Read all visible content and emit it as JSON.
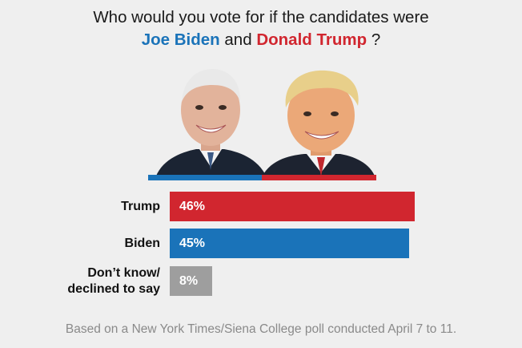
{
  "title": {
    "prefix": "Who would you vote for if the candidates were",
    "candidate_a": "Joe Biden",
    "joiner": "and",
    "candidate_b": "Donald Trump",
    "suffix": "?"
  },
  "colors": {
    "trump": "#d1262f",
    "biden": "#1a73b9",
    "undecided": "#9e9e9e"
  },
  "chart_data": {
    "type": "bar",
    "orientation": "horizontal",
    "categories": [
      "Trump",
      "Biden",
      "Don’t know/ declined to say"
    ],
    "values": [
      46,
      45,
      8
    ],
    "value_labels": [
      "46%",
      "45%",
      "8%"
    ],
    "unit": "%",
    "xlim": [
      0,
      50
    ]
  },
  "row_labels": {
    "trump": "Trump",
    "biden": "Biden",
    "undecided_line1": "Don’t know/",
    "undecided_line2": "declined to say"
  },
  "footnote": "Based on a New York Times/Siena College poll conducted April 7 to 11."
}
